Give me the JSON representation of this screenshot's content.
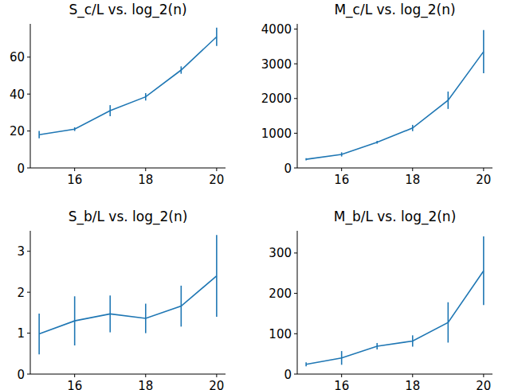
{
  "chart_data": [
    {
      "type": "line",
      "title": "S_c/L vs. log_2(n)",
      "color": "#1f77b4",
      "x": [
        15,
        16,
        17,
        18,
        19,
        20
      ],
      "values": [
        18,
        21,
        31,
        38.5,
        53,
        71
      ],
      "errors": [
        2,
        1,
        3,
        2,
        2,
        5
      ],
      "xlim": [
        14.75,
        20.25
      ],
      "xticks": [
        16,
        18,
        20
      ],
      "ylim": [
        0,
        78
      ],
      "yticks": [
        0,
        20,
        40,
        60
      ]
    },
    {
      "type": "line",
      "title": "M_c/L vs. log_2(n)",
      "color": "#1f77b4",
      "x": [
        15,
        16,
        17,
        18,
        19,
        20
      ],
      "values": [
        250,
        390,
        740,
        1150,
        1950,
        3350
      ],
      "errors": [
        30,
        60,
        40,
        90,
        250,
        620
      ],
      "xlim": [
        14.75,
        20.25
      ],
      "xticks": [
        16,
        18,
        20
      ],
      "ylim": [
        0,
        4150
      ],
      "yticks": [
        0,
        1000,
        2000,
        3000,
        4000
      ]
    },
    {
      "type": "line",
      "title": "S_b/L vs. log_2(n)",
      "color": "#1f77b4",
      "x": [
        15,
        16,
        17,
        18,
        19,
        20
      ],
      "values": [
        0.98,
        1.3,
        1.47,
        1.36,
        1.66,
        2.4
      ],
      "errors": [
        0.5,
        0.6,
        0.45,
        0.36,
        0.5,
        1.0
      ],
      "xlim": [
        14.75,
        20.25
      ],
      "xticks": [
        16,
        18,
        20
      ],
      "ylim": [
        0,
        3.5
      ],
      "yticks": [
        0,
        1,
        2,
        3
      ]
    },
    {
      "type": "line",
      "title": "M_b/L vs. log_2(n)",
      "color": "#1f77b4",
      "x": [
        15,
        16,
        17,
        18,
        19,
        20
      ],
      "values": [
        24,
        40,
        69,
        82,
        128,
        256
      ],
      "errors": [
        5,
        17,
        8,
        14,
        50,
        85
      ],
      "xlim": [
        14.75,
        20.25
      ],
      "xticks": [
        16,
        18,
        20
      ],
      "ylim": [
        0,
        355
      ],
      "yticks": [
        0,
        100,
        200,
        300
      ]
    }
  ]
}
